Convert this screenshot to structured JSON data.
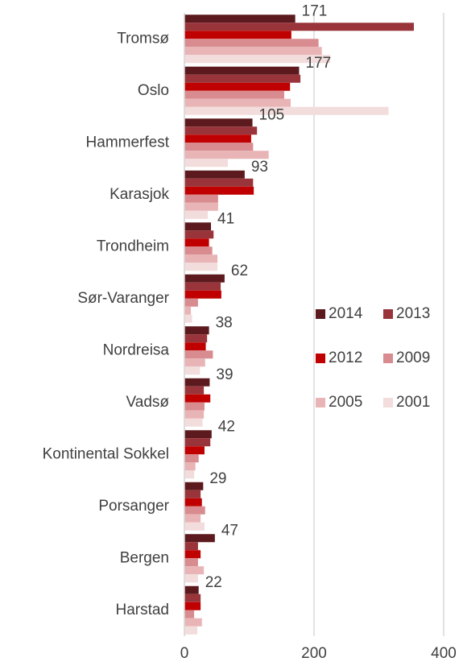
{
  "chart_data": {
    "type": "barh",
    "categories": [
      "Tromsø",
      "Oslo",
      "Hammerfest",
      "Karasjok",
      "Trondheim",
      "Sør-Varanger",
      "Nordreisa",
      "Vadsø",
      "Kontinental Sokkel",
      "Porsanger",
      "Bergen",
      "Harstad"
    ],
    "series": [
      {
        "name": "2014",
        "color": "#5c1a1e",
        "values": [
          171,
          177,
          105,
          93,
          41,
          62,
          38,
          39,
          42,
          29,
          47,
          22
        ]
      },
      {
        "name": "2013",
        "color": "#99343a",
        "values": [
          354,
          179,
          112,
          106,
          45,
          56,
          35,
          30,
          40,
          25,
          21,
          25
        ]
      },
      {
        "name": "2012",
        "color": "#c00000",
        "values": [
          165,
          163,
          103,
          107,
          38,
          57,
          33,
          40,
          31,
          27,
          25,
          25
        ]
      },
      {
        "name": "2009",
        "color": "#d98c8f",
        "values": [
          207,
          154,
          106,
          52,
          43,
          21,
          44,
          31,
          22,
          32,
          21,
          15
        ]
      },
      {
        "name": "2005",
        "color": "#e8b4b6",
        "values": [
          212,
          164,
          130,
          52,
          51,
          10,
          32,
          30,
          17,
          25,
          30,
          27
        ]
      },
      {
        "name": "2001",
        "color": "#f2dcdc",
        "values": [
          225,
          315,
          67,
          36,
          51,
          12,
          24,
          28,
          15,
          31,
          21,
          20
        ]
      }
    ],
    "xlim": [
      0,
      400
    ],
    "xticks": [
      0,
      200,
      400
    ],
    "grid": true,
    "legend": "right"
  }
}
